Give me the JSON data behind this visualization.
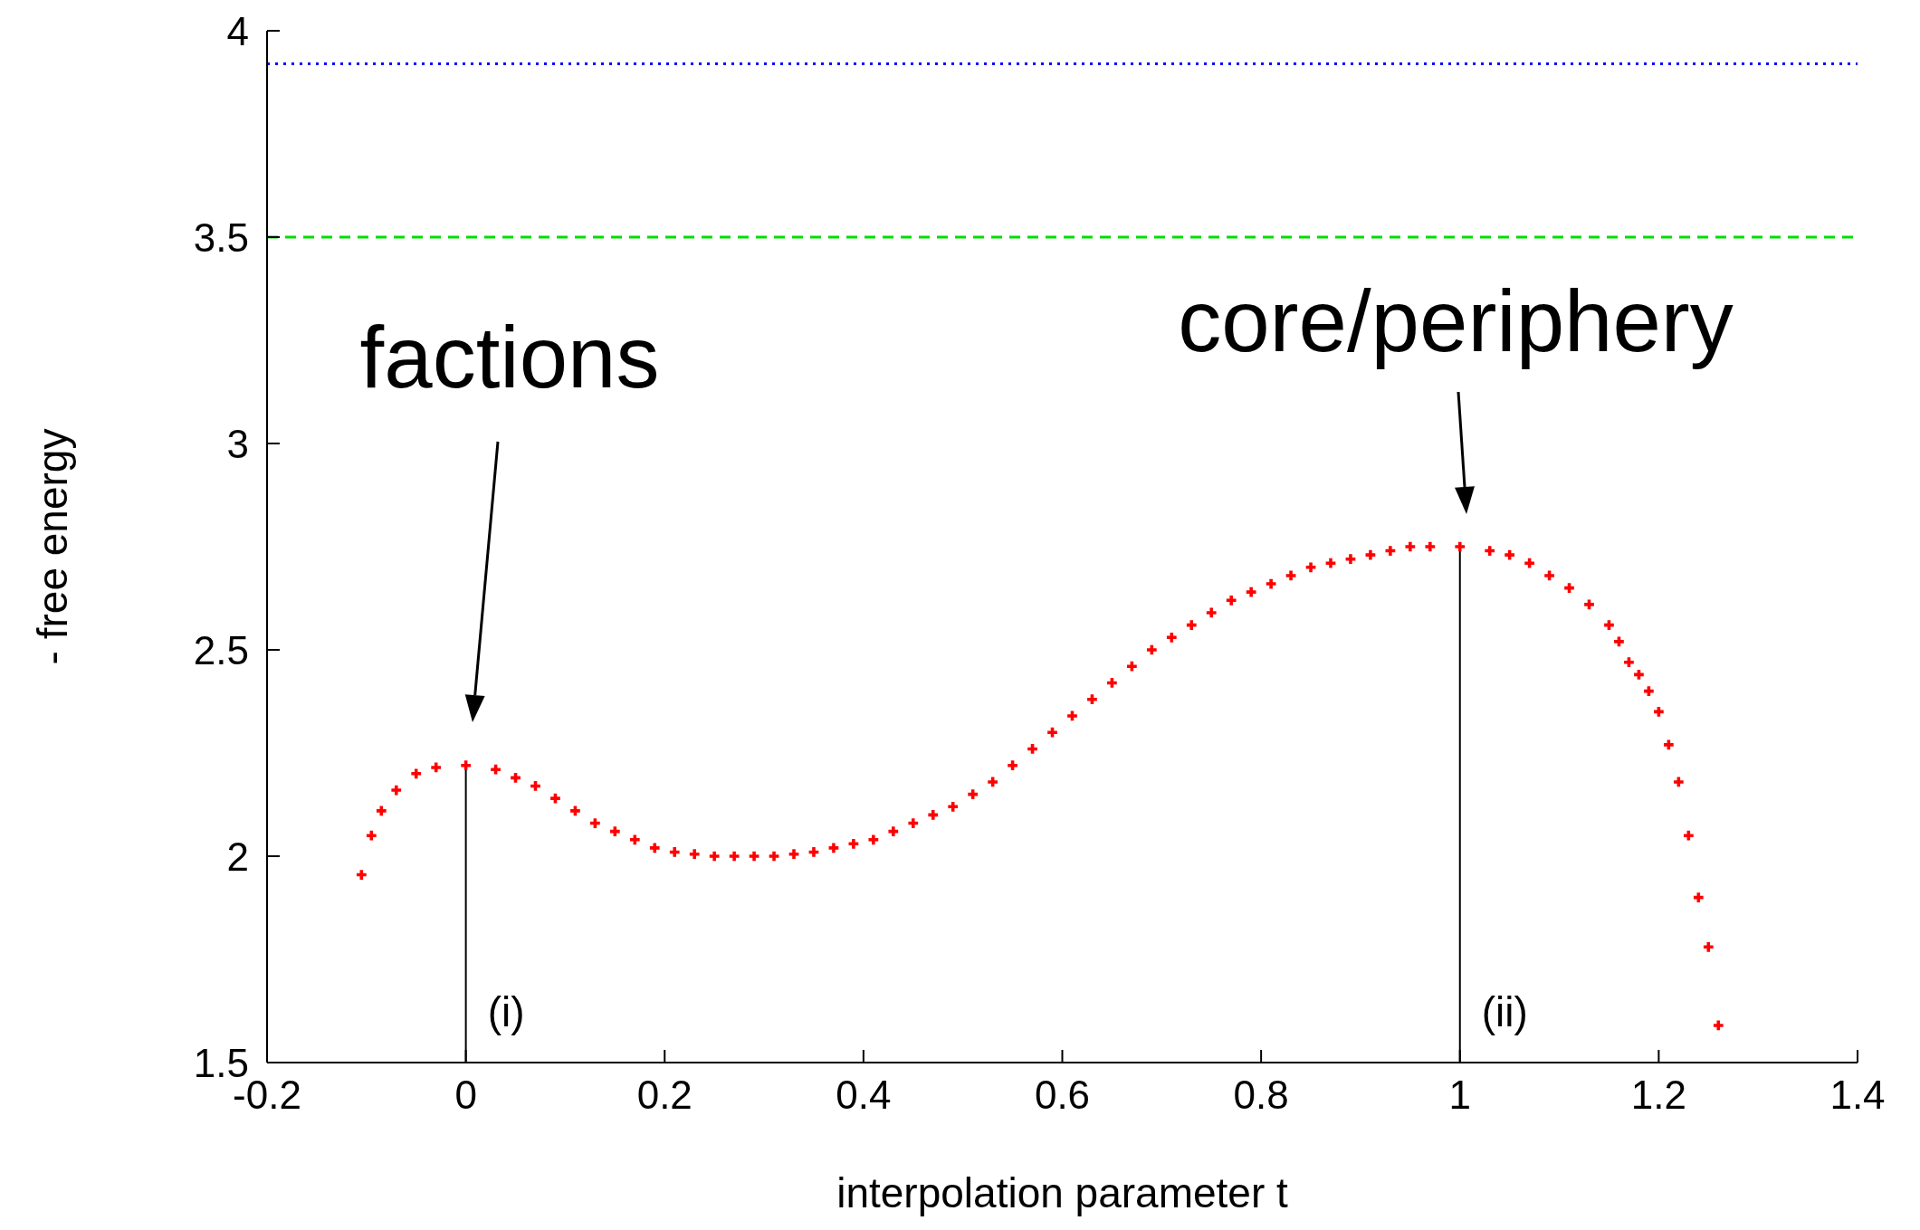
{
  "chart_data": {
    "type": "scatter",
    "xlabel": "interpolation parameter t",
    "ylabel": "- free energy",
    "xlim": [
      -0.2,
      1.4
    ],
    "xticks": [
      -0.2,
      0,
      0.2,
      0.4,
      0.6,
      0.8,
      1,
      1.2,
      1.4
    ],
    "ylim": [
      1.5,
      4
    ],
    "yticks": [
      1.5,
      2,
      2.5,
      3,
      3.5,
      4
    ],
    "marker": "cross",
    "grid": false,
    "legend": false,
    "series": [
      {
        "color": "#ff0000",
        "x": [
          -0.105,
          -0.095,
          -0.085,
          -0.07,
          -0.05,
          -0.03,
          0,
          0.03,
          0.05,
          0.07,
          0.09,
          0.11,
          0.13,
          0.15,
          0.17,
          0.19,
          0.21,
          0.23,
          0.25,
          0.27,
          0.29,
          0.31,
          0.33,
          0.35,
          0.37,
          0.39,
          0.41,
          0.43,
          0.45,
          0.47,
          0.49,
          0.51,
          0.53,
          0.55,
          0.57,
          0.59,
          0.61,
          0.63,
          0.65,
          0.67,
          0.69,
          0.71,
          0.73,
          0.75,
          0.77,
          0.79,
          0.81,
          0.83,
          0.85,
          0.87,
          0.89,
          0.91,
          0.93,
          0.95,
          0.97,
          1,
          1.03,
          1.05,
          1.07,
          1.09,
          1.11,
          1.13,
          1.15,
          1.16,
          1.17,
          1.18,
          1.19,
          1.2,
          1.21,
          1.22,
          1.23,
          1.24,
          1.25,
          1.26
        ],
        "values": [
          1.955,
          2.05,
          2.11,
          2.16,
          2.2,
          2.215,
          2.22,
          2.21,
          2.19,
          2.17,
          2.14,
          2.11,
          2.08,
          2.06,
          2.04,
          2.02,
          2.01,
          2.005,
          2,
          2,
          2,
          2,
          2.005,
          2.01,
          2.02,
          2.03,
          2.04,
          2.06,
          2.08,
          2.1,
          2.12,
          2.15,
          2.18,
          2.22,
          2.26,
          2.3,
          2.34,
          2.38,
          2.42,
          2.46,
          2.5,
          2.53,
          2.56,
          2.59,
          2.62,
          2.64,
          2.66,
          2.68,
          2.7,
          2.71,
          2.72,
          2.73,
          2.74,
          2.75,
          2.75,
          2.75,
          2.74,
          2.73,
          2.71,
          2.68,
          2.65,
          2.61,
          2.56,
          2.52,
          2.47,
          2.44,
          2.4,
          2.35,
          2.27,
          2.18,
          2.05,
          1.9,
          1.78,
          1.59
        ]
      }
    ],
    "ref_lines": [
      {
        "axis": "y",
        "value": 3.92,
        "color": "#0000ff",
        "line_style": "dotted"
      },
      {
        "axis": "y",
        "value": 3.5,
        "color": "#00dd00",
        "line_style": "dashed"
      },
      {
        "axis": "x",
        "value": 0,
        "label": "(i)",
        "color": "#000000"
      },
      {
        "axis": "x",
        "value": 1,
        "label": "(ii)",
        "color": "#000000"
      }
    ],
    "annotations": [
      "factions",
      "core/periphery"
    ]
  }
}
